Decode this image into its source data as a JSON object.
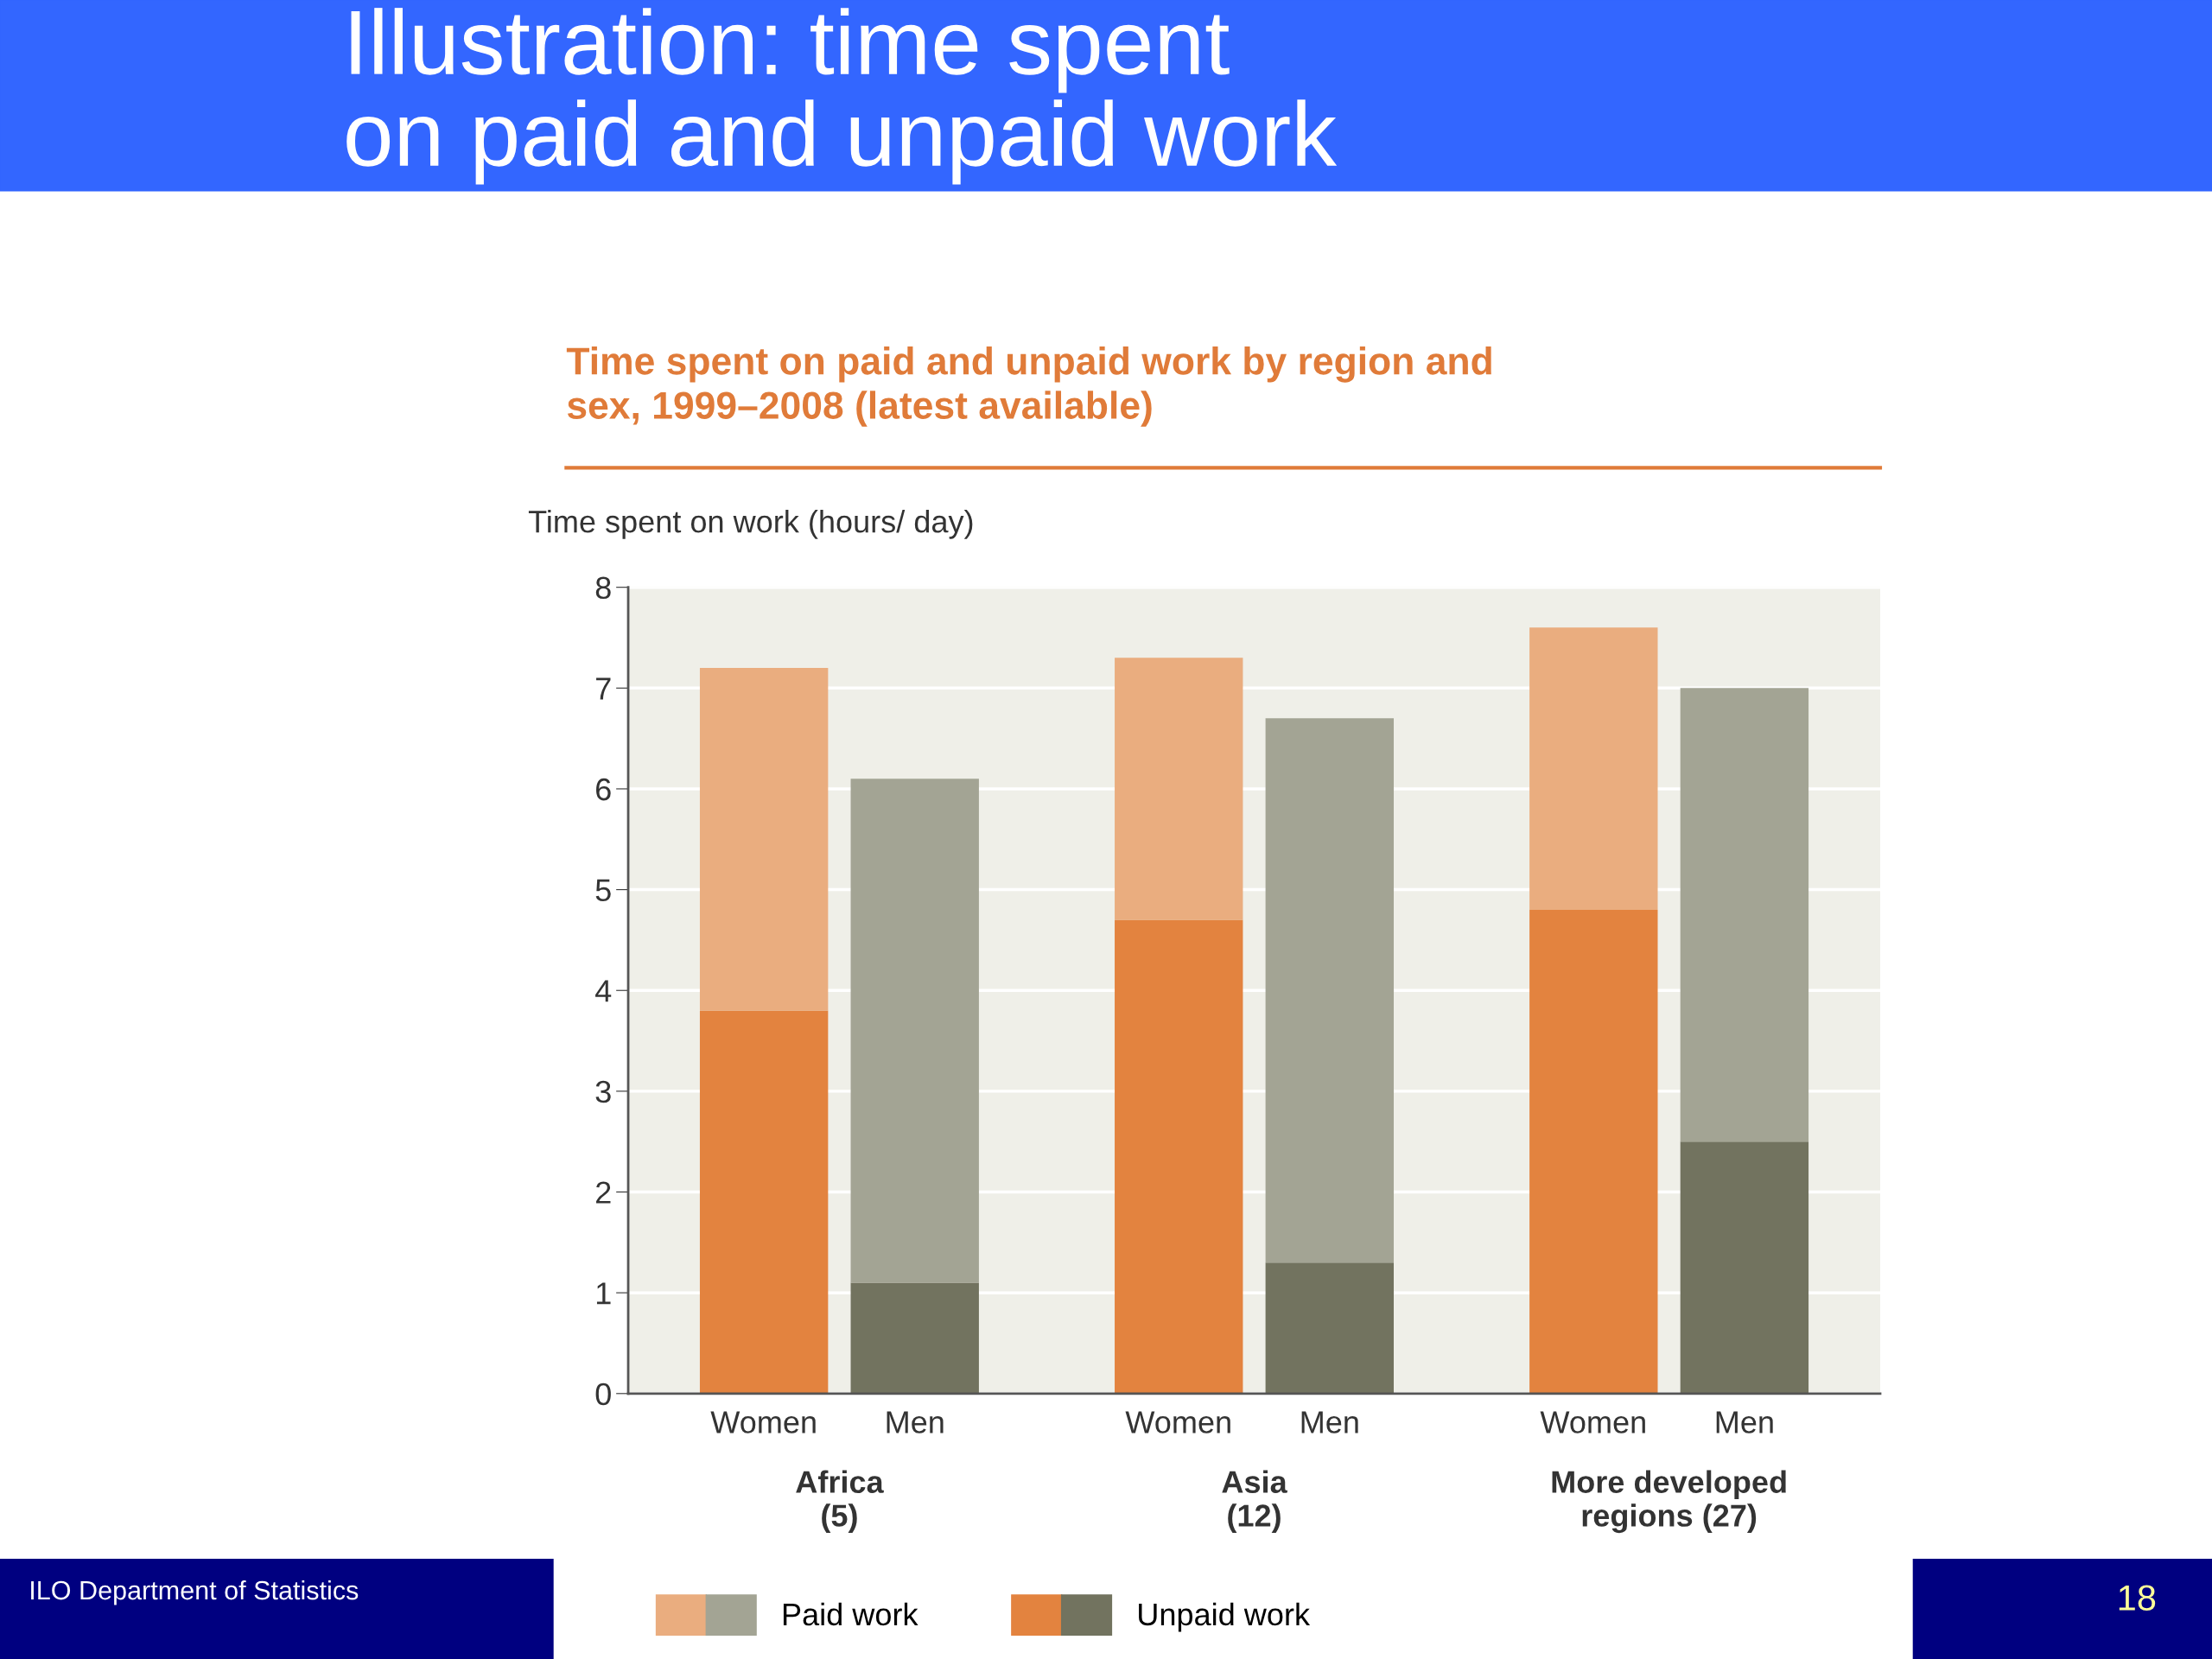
{
  "chart_data": {
    "type": "bar",
    "stacked": true,
    "title": "Illustration: time spent\non paid and unpaid work",
    "subtitle": "Time spent on paid and unpaid work by region and\nsex, 1999–2008 (latest available)",
    "ylabel": "Time spent on work (hours/ day)",
    "categories": [
      "Women",
      "Men",
      "Women",
      "Men",
      "Women",
      "Men"
    ],
    "series": [
      {
        "name": "Unpaid work",
        "colors": [
          "#e3833f",
          "#72735f",
          "#e3833f",
          "#72735f",
          "#e3833f",
          "#72735f"
        ],
        "values": [
          3.8,
          1.1,
          4.7,
          1.3,
          4.8,
          2.5
        ]
      },
      {
        "name": "Paid work",
        "colors": [
          "#eaad7f",
          "#a3a494",
          "#eaad7f",
          "#a3a494",
          "#eaad7f",
          "#a3a494"
        ],
        "values": [
          3.4,
          5.0,
          2.6,
          5.4,
          2.8,
          4.5
        ]
      }
    ],
    "ylim": [
      0,
      8
    ],
    "yticks": [
      0,
      1,
      2,
      3,
      4,
      5,
      6,
      7,
      8
    ],
    "grid": "y",
    "legend": "bottom",
    "annotations": [
      "Africa\n(5)",
      "Asia\n(12)",
      "More developed\nregions (27)",
      "ILO Department of Statistics",
      "18"
    ]
  }
}
